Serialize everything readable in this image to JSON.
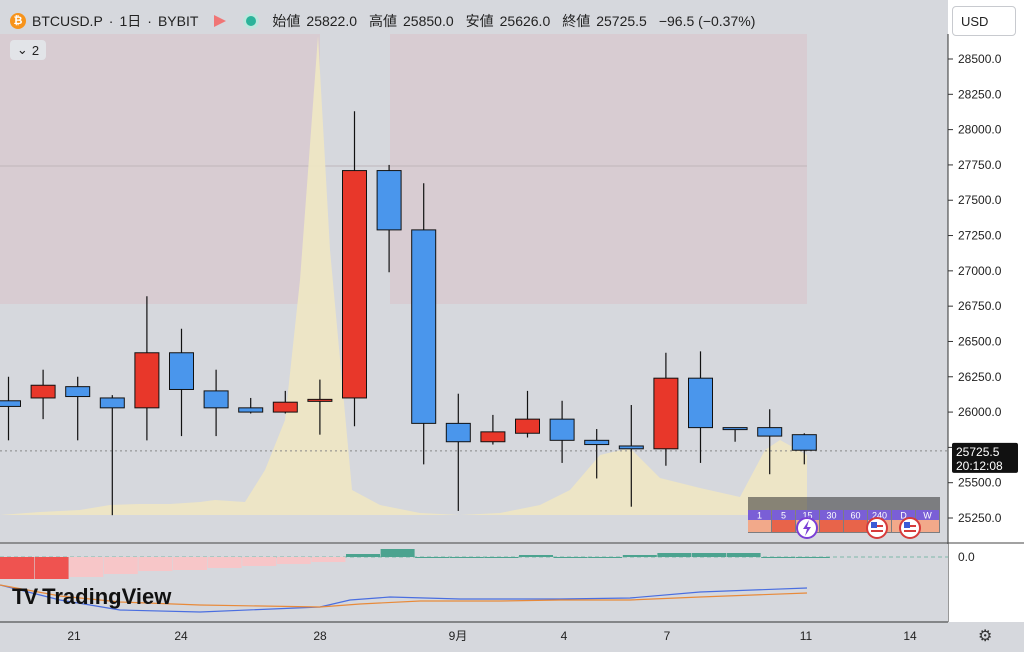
{
  "header": {
    "symbol": "BTCUSD.P",
    "interval": "1日",
    "exchange": "BYBIT",
    "open_label": "始値",
    "open": "25822.0",
    "high_label": "高値",
    "high": "25850.0",
    "low_label": "安値",
    "low": "25626.0",
    "close_label": "終値",
    "close": "25725.5",
    "change": "−96.5 (−0.37%)",
    "separator": "·"
  },
  "indicator_toggle": {
    "count": "2"
  },
  "currency": {
    "selected": "USD"
  },
  "price_axis": {
    "ticks": [
      "28500.0",
      "28250.0",
      "28000.0",
      "27750.0",
      "27500.0",
      "27250.0",
      "27000.0",
      "26750.0",
      "26500.0",
      "26250.0",
      "26000.0",
      "25750.0",
      "25500.0",
      "25250.0"
    ],
    "current_price": "25725.5",
    "countdown": "20:12:08"
  },
  "lower_axis": {
    "zero": "0.0"
  },
  "time_axis": {
    "ticks": [
      "21",
      "24",
      "28",
      "9月",
      "4",
      "7",
      "11",
      "14"
    ]
  },
  "brand": {
    "name": "TradingView"
  },
  "mini_bar": {
    "timeframes": [
      "1",
      "5",
      "15",
      "30",
      "60",
      "240",
      "D",
      "W"
    ]
  },
  "colors": {
    "up": "#e8372a",
    "down": "#4a96ec",
    "volume_area": "#eee6c4",
    "zone": "#d8cbd0",
    "ma_blue": "#4a6ee0",
    "ma_orange": "#e88a3a"
  },
  "chart_data": {
    "type": "candlestick",
    "ylim": [
      25100,
      28700
    ],
    "candles": [
      {
        "o": 26080,
        "h": 26250,
        "l": 25800,
        "c": 26040
      },
      {
        "o": 26100,
        "h": 26300,
        "l": 25950,
        "c": 26190
      },
      {
        "o": 26180,
        "h": 26250,
        "l": 25800,
        "c": 26110
      },
      {
        "o": 26100,
        "h": 26120,
        "l": 25270,
        "c": 26030
      },
      {
        "o": 26030,
        "h": 26820,
        "l": 25800,
        "c": 26420
      },
      {
        "o": 26420,
        "h": 26590,
        "l": 25830,
        "c": 26160
      },
      {
        "o": 26150,
        "h": 26300,
        "l": 25830,
        "c": 26030
      },
      {
        "o": 26030,
        "h": 26100,
        "l": 25990,
        "c": 26000
      },
      {
        "o": 26000,
        "h": 26150,
        "l": 25990,
        "c": 26070
      },
      {
        "o": 26080,
        "h": 26230,
        "l": 25840,
        "c": 26090
      },
      {
        "o": 26100,
        "h": 28130,
        "l": 25900,
        "c": 27710
      },
      {
        "o": 27710,
        "h": 27750,
        "l": 26990,
        "c": 27290
      },
      {
        "o": 27290,
        "h": 27620,
        "l": 25630,
        "c": 25920
      },
      {
        "o": 25920,
        "h": 26130,
        "l": 25300,
        "c": 25790
      },
      {
        "o": 25790,
        "h": 25980,
        "l": 25770,
        "c": 25860
      },
      {
        "o": 25850,
        "h": 26150,
        "l": 25820,
        "c": 25950
      },
      {
        "o": 25950,
        "h": 26080,
        "l": 25640,
        "c": 25800
      },
      {
        "o": 25800,
        "h": 25880,
        "l": 25530,
        "c": 25770
      },
      {
        "o": 25760,
        "h": 26050,
        "l": 25330,
        "c": 25740
      },
      {
        "o": 25740,
        "h": 26420,
        "l": 25620,
        "c": 26240
      },
      {
        "o": 26240,
        "h": 26430,
        "l": 25640,
        "c": 25890
      },
      {
        "o": 25890,
        "h": 25890,
        "l": 25790,
        "c": 25890
      },
      {
        "o": 25890,
        "h": 26020,
        "l": 25560,
        "c": 25830
      },
      {
        "o": 25840,
        "h": 25850,
        "l": 25630,
        "c": 25730
      }
    ]
  }
}
